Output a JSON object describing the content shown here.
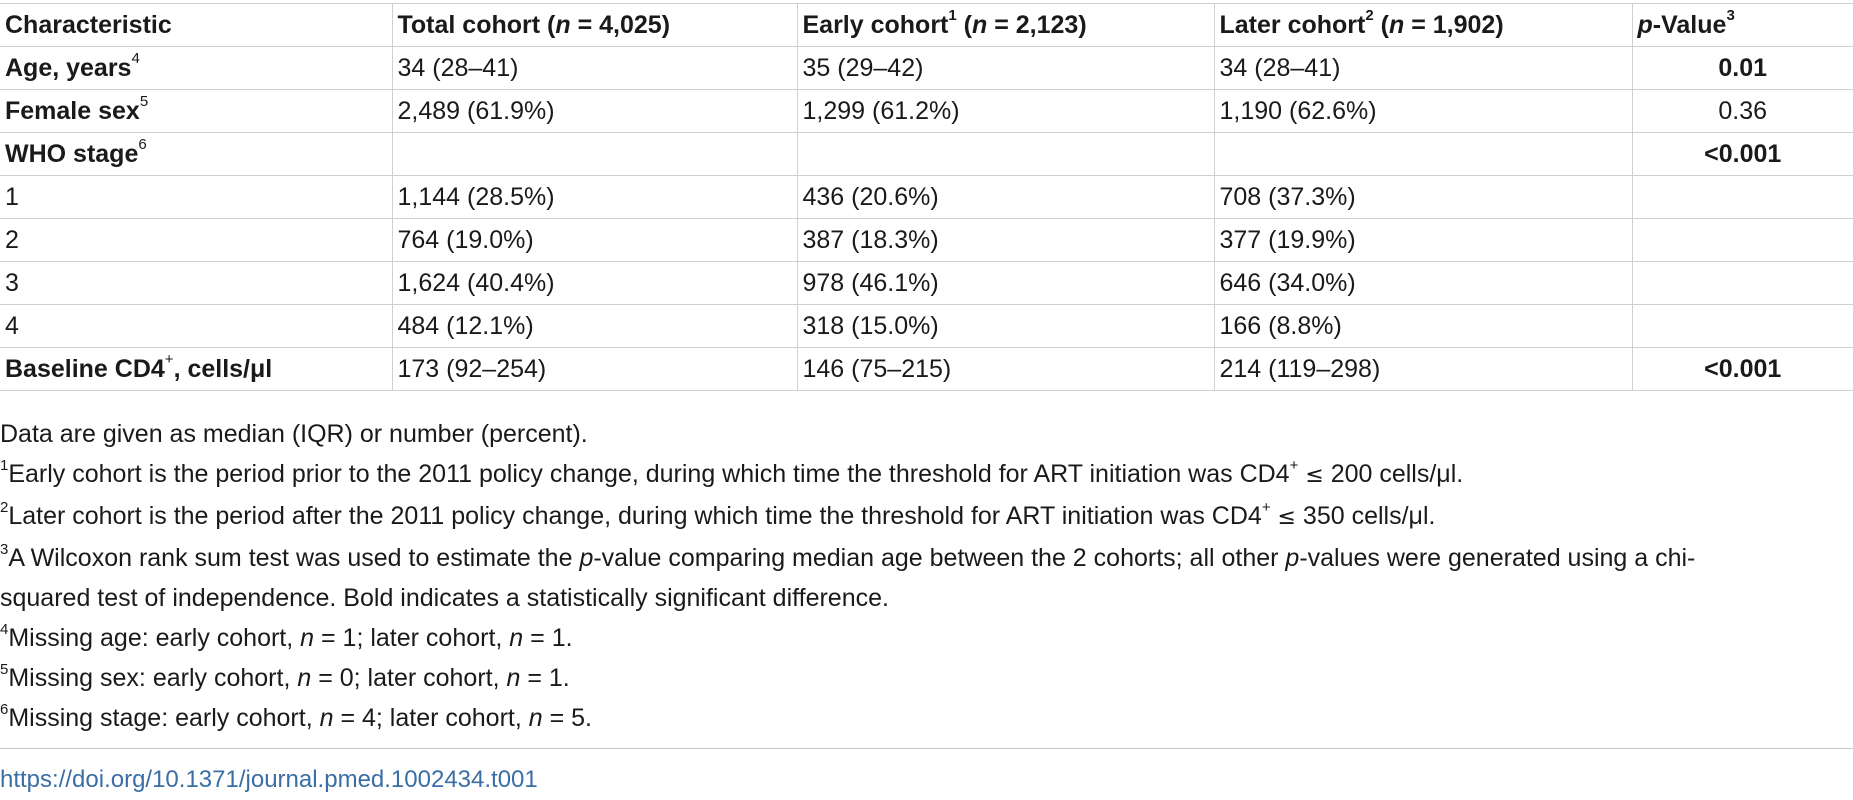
{
  "table": {
    "header": {
      "c1": "Characteristic",
      "c2": {
        "pre": "Total cohort (",
        "n": "n",
        "post": " = 4,025)"
      },
      "c3": {
        "pre": "Early cohort",
        "sup": "1",
        "mid": " (",
        "n": "n",
        "post": " = 2,123)"
      },
      "c4": {
        "pre": "Later cohort",
        "sup": "2",
        "mid": " (",
        "n": "n",
        "post": " = 1,902)"
      },
      "c5": {
        "p": "p",
        "post": "-Value",
        "sup": "3"
      }
    },
    "rows": [
      {
        "label": "Age, years",
        "sup": "4",
        "total": "34 (28–41)",
        "early": "35 (29–42)",
        "later": "34 (28–41)",
        "p": "0.01"
      },
      {
        "label": "Female sex",
        "sup": "5",
        "total": "2,489 (61.9%)",
        "early": "1,299 (61.2%)",
        "later": "1,190 (62.6%)",
        "p": "0.36"
      },
      {
        "label": "WHO stage",
        "sup": "6",
        "total": "",
        "early": "",
        "later": "",
        "p": "<0.001"
      },
      {
        "label": "1",
        "total": "1,144 (28.5%)",
        "early": "436 (20.6%)",
        "later": "708 (37.3%)",
        "p": ""
      },
      {
        "label": "2",
        "total": "764 (19.0%)",
        "early": "387 (18.3%)",
        "later": "377 (19.9%)",
        "p": ""
      },
      {
        "label": "3",
        "total": "1,624 (40.4%)",
        "early": "978 (46.1%)",
        "later": "646 (34.0%)",
        "p": ""
      },
      {
        "label": "4",
        "total": "484 (12.1%)",
        "early": "318 (15.0%)",
        "later": "166 (8.8%)",
        "p": ""
      },
      {
        "label": "Baseline CD4",
        "sup": "+",
        "label_post": ", cells/μl",
        "total": "173 (92–254)",
        "early": "146 (75–215)",
        "later": "214 (119–298)",
        "p": "<0.001"
      }
    ]
  },
  "notes": {
    "n0": "Data are given as median (IQR) or number (percent).",
    "n1": {
      "sup": "1",
      "a": "Early cohort is the period prior to the 2011 policy change, during which time the threshold for ART initiation was CD4",
      "plus": "+",
      "le": "≤",
      "b": " 200 cells/μl."
    },
    "n2": {
      "sup": "2",
      "a": "Later cohort is the period after the 2011 policy change, during which time the threshold for ART initiation was CD4",
      "plus": "+",
      "le": "≤",
      "b": " 350 cells/μl."
    },
    "n3": {
      "sup": "3",
      "a": "A Wilcoxon rank sum test was used to estimate the ",
      "p1": "p",
      "b": "-value comparing median age between the 2 cohorts; all other ",
      "p2": "p",
      "c": "-values were generated using a chi-",
      "line2": "squared test of independence. Bold indicates a statistically significant difference."
    },
    "n4": {
      "sup": "4",
      "a": "Missing age: early cohort, ",
      "n1": "n",
      "b": " = 1; later cohort, ",
      "n2": "n",
      "c": " = 1."
    },
    "n5": {
      "sup": "5",
      "a": "Missing sex: early cohort, ",
      "n1": "n",
      "b": " = 0; later cohort, ",
      "n2": "n",
      "c": " = 1."
    },
    "n6": {
      "sup": "6",
      "a": "Missing stage: early cohort, ",
      "n1": "n",
      "b": " = 4; later cohort, ",
      "n2": "n",
      "c": " = 5."
    }
  },
  "doi": "https://doi.org/10.1371/journal.pmed.1002434.t001",
  "colors": {
    "text": "#1a1a1a",
    "rule": "#d0d0d0",
    "link": "#3a6ea5"
  }
}
